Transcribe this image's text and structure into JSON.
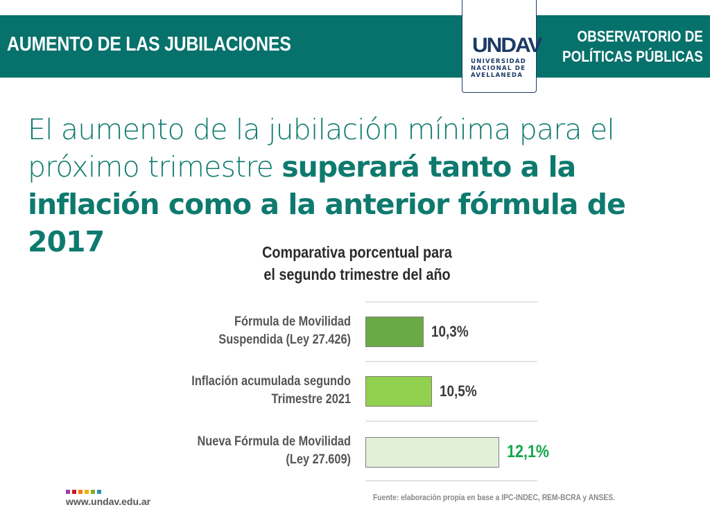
{
  "header": {
    "title": "AUMENTO DE LAS JUBILACIONES",
    "logo_mark": "UNDAV",
    "logo_lines": [
      "UNIVERSIDAD",
      "NACIONAL DE",
      "AVELLANEDA"
    ],
    "right_lines": [
      "OBSERVATORIO DE",
      "POLÍTICAS PÚBLICAS"
    ],
    "banner_color": "#07716b"
  },
  "headline": {
    "normal": "El aumento de la jubilación mínima para el próximo trimestre ",
    "bold": "superará tanto a la inflación como a la anterior fórmula de 2017",
    "color": "#0e7a6e"
  },
  "chart_data": {
    "type": "bar",
    "orientation": "horizontal",
    "title": "Comparativa porcentual para el segundo trimestre del año",
    "title_lines": [
      "Comparativa porcentual para",
      "el segundo trimestre del año"
    ],
    "categories": [
      "Fórmula de Movilidad Suspendida (Ley 27.426)",
      "Inflación acumulada segundo Trimestre 2021",
      "Nueva Fórmula de Movilidad (Ley 27.609)"
    ],
    "category_lines": [
      [
        "Fórmula de Movilidad",
        "Suspendida (Ley 27.426)"
      ],
      [
        "Inflación acumulada segundo",
        "Trimestre 2021"
      ],
      [
        "Nueva Fórmula de Movilidad",
        "(Ley 27.609)"
      ]
    ],
    "values": [
      10.3,
      10.5,
      12.1
    ],
    "value_labels": [
      "10,3%",
      "10,5%",
      "12,1%"
    ],
    "bar_colors": [
      "#6aaa46",
      "#92d050",
      "#e2f0d9"
    ],
    "label_colors": [
      "#3a3a3a",
      "#3a3a3a",
      "#14a84a"
    ],
    "unit": "%",
    "xlabel": "",
    "ylabel": "",
    "grid": true,
    "legend": null
  },
  "footer": {
    "website": "www.undav.edu.ar",
    "source": "Fuente: elaboración propia en base a IPC-INDEC, REM-BCRA y ANSES.",
    "square_colors": [
      "#a63d98",
      "#d4141f",
      "#f07d12",
      "#f0b100",
      "#8ba52a",
      "#2596ab"
    ]
  }
}
